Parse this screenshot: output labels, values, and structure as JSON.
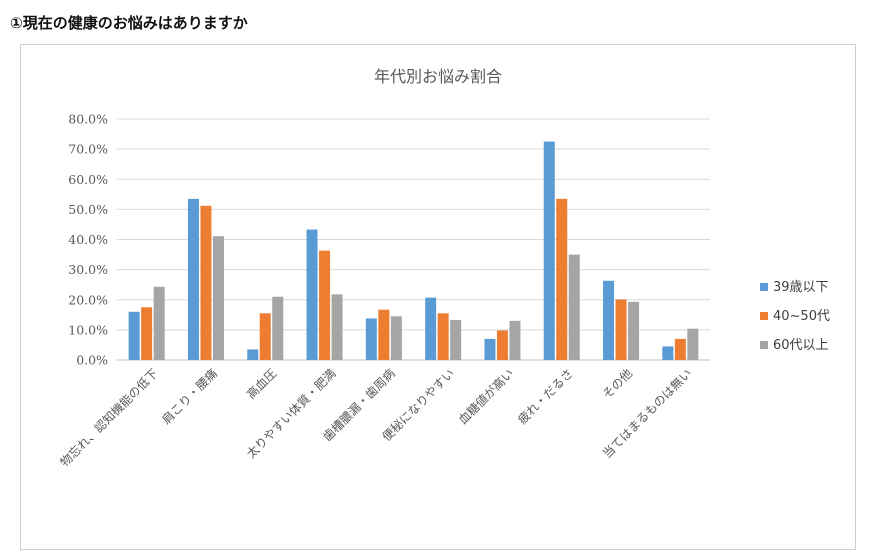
{
  "heading": "①現在の健康のお悩みはありますか",
  "chart_data": {
    "type": "bar",
    "title": "年代別お悩み割合",
    "xlabel": "",
    "ylabel": "",
    "ylim": [
      0,
      80
    ],
    "y_ticks": [
      "0.0%",
      "10.0%",
      "20.0%",
      "30.0%",
      "40.0%",
      "50.0%",
      "60.0%",
      "70.0%",
      "80.0%"
    ],
    "grid": true,
    "legend_position": "right",
    "categories": [
      "物忘れ、認知機能の低下",
      "肩こり・腰痛",
      "高血圧",
      "太りやすい体質・肥満",
      "歯槽膿漏・歯周病",
      "便秘になりやすい",
      "血糖値が高い",
      "疲れ・だるさ",
      "その他",
      "当てはまるものは無い"
    ],
    "series": [
      {
        "name": "39歳以下",
        "color": "#5B9BD5",
        "values": [
          16.0,
          53.5,
          3.5,
          43.3,
          13.8,
          20.7,
          7.0,
          72.5,
          26.3,
          4.5
        ]
      },
      {
        "name": "40~50代",
        "color": "#ED7D31",
        "values": [
          17.5,
          51.2,
          15.5,
          36.3,
          16.7,
          15.5,
          9.8,
          53.5,
          20.1,
          7.0
        ]
      },
      {
        "name": "60代以上",
        "color": "#A5A5A5",
        "values": [
          24.3,
          41.1,
          21.0,
          21.8,
          14.5,
          13.3,
          13.0,
          35.0,
          19.3,
          10.4
        ]
      }
    ]
  }
}
